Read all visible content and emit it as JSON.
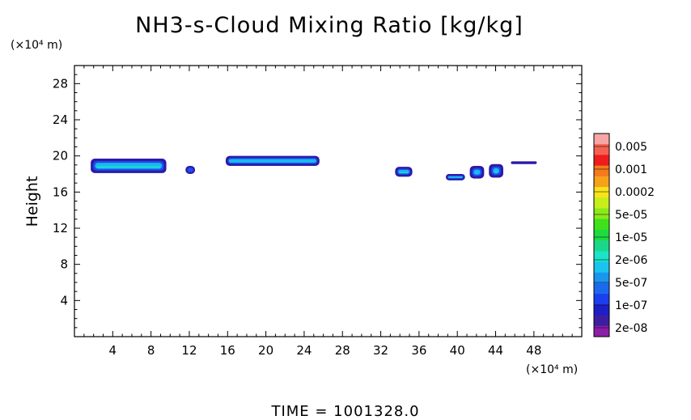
{
  "chart_data": {
    "type": "heatmap",
    "title": "NH3-s-Cloud Mixing Ratio [kg/kg]",
    "ylabel": "Height",
    "yunit": "(×10⁴ m)",
    "xunit": "(×10⁴ m)",
    "xlim": [
      0,
      53
    ],
    "ylim": [
      0,
      30
    ],
    "xticks": [
      4,
      8,
      12,
      16,
      20,
      24,
      28,
      32,
      36,
      40,
      44,
      48
    ],
    "yticks": [
      4,
      8,
      12,
      16,
      20,
      24,
      28
    ],
    "colorbar": {
      "labels": [
        "0.005",
        "0.001",
        "0.0002",
        "5e-05",
        "1e-05",
        "2e-06",
        "5e-07",
        "1e-07",
        "2e-08"
      ],
      "colors_top_to_bottom": [
        "#f7a5a5",
        "#f46050",
        "#ee1c1c",
        "#f47a1b",
        "#f7a21b",
        "#f7e41b",
        "#c6ee1b",
        "#8ce81b",
        "#3ee11b",
        "#1edb42",
        "#1bd889",
        "#1be4c9",
        "#1bc4ee",
        "#1b96ee",
        "#1b6aee",
        "#1b3eee",
        "#1e1ec8",
        "#3e1ea0",
        "#8c1ea8"
      ]
    },
    "cloud_regions": [
      {
        "x": [
          1.7,
          9.6
        ],
        "y": [
          18.1,
          19.7
        ],
        "peak": "1e-05"
      },
      {
        "x": [
          11.6,
          12.6
        ],
        "y": [
          18.0,
          18.9
        ],
        "peak": "5e-07"
      },
      {
        "x": [
          15.8,
          25.6
        ],
        "y": [
          18.9,
          20.0
        ],
        "peak": "2e-06"
      },
      {
        "x": [
          33.5,
          35.3
        ],
        "y": [
          17.7,
          18.8
        ],
        "peak": "5e-06"
      },
      {
        "x": [
          38.8,
          40.8
        ],
        "y": [
          17.3,
          18.0
        ],
        "peak": "1e-05"
      },
      {
        "x": [
          41.3,
          42.8
        ],
        "y": [
          17.5,
          18.9
        ],
        "peak": "2e-06"
      },
      {
        "x": [
          43.3,
          44.8
        ],
        "y": [
          17.6,
          19.1
        ],
        "peak": "1e-05"
      },
      {
        "x": [
          45.6,
          48.3
        ],
        "y": [
          19.1,
          19.4
        ],
        "peak": "2e-08"
      }
    ],
    "footer": "TIME =  1001328.0"
  },
  "colors": {
    "band_outer": "#2c1aa8",
    "band_blue": "#1b4fee",
    "band_light": "#1bb8ee",
    "band_cyan": "#1be4c9",
    "band_green": "#6ee81b"
  }
}
